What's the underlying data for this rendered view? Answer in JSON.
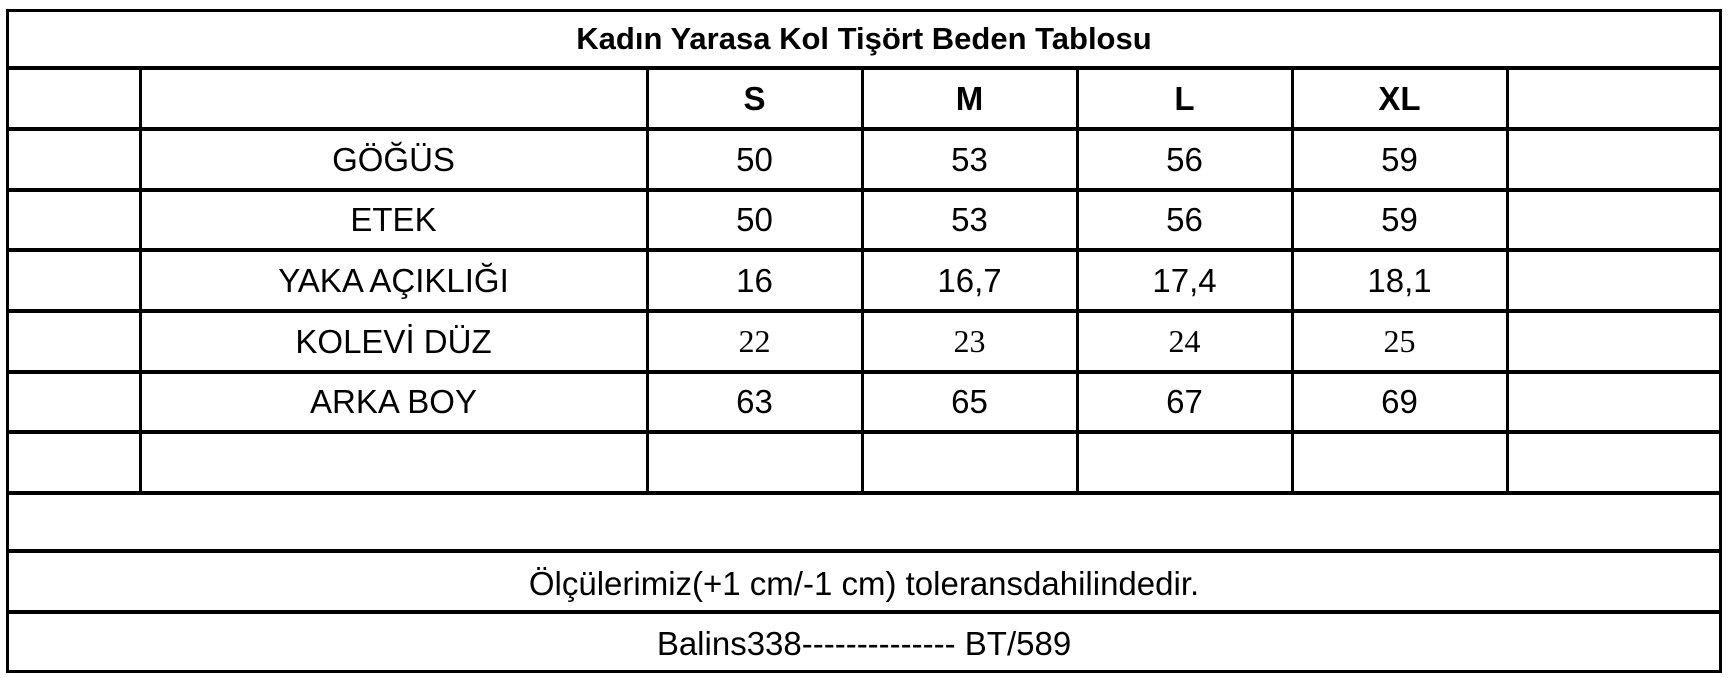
{
  "title": "Kadın Yarasa Kol Tişört Beden Tablosu",
  "sizes": [
    "S",
    "M",
    "L",
    "XL"
  ],
  "rows": [
    {
      "label": "GÖĞÜS",
      "values": [
        "50",
        "53",
        "56",
        "59"
      ]
    },
    {
      "label": "ETEK",
      "values": [
        "50",
        "53",
        "56",
        "59"
      ]
    },
    {
      "label": "YAKA AÇIKLIĞI",
      "values": [
        "16",
        "16,7",
        "17,4",
        "18,1"
      ]
    },
    {
      "label": "KOLEVİ DÜZ",
      "values": [
        "22",
        "23",
        "24",
        "25"
      ]
    },
    {
      "label": "ARKA BOY",
      "values": [
        "63",
        "65",
        "67",
        "69"
      ]
    }
  ],
  "note": "Ölçülerimiz(+1 cm/-1 cm) toleransdahilindedir.",
  "code": "Balins338-------------- BT/589"
}
